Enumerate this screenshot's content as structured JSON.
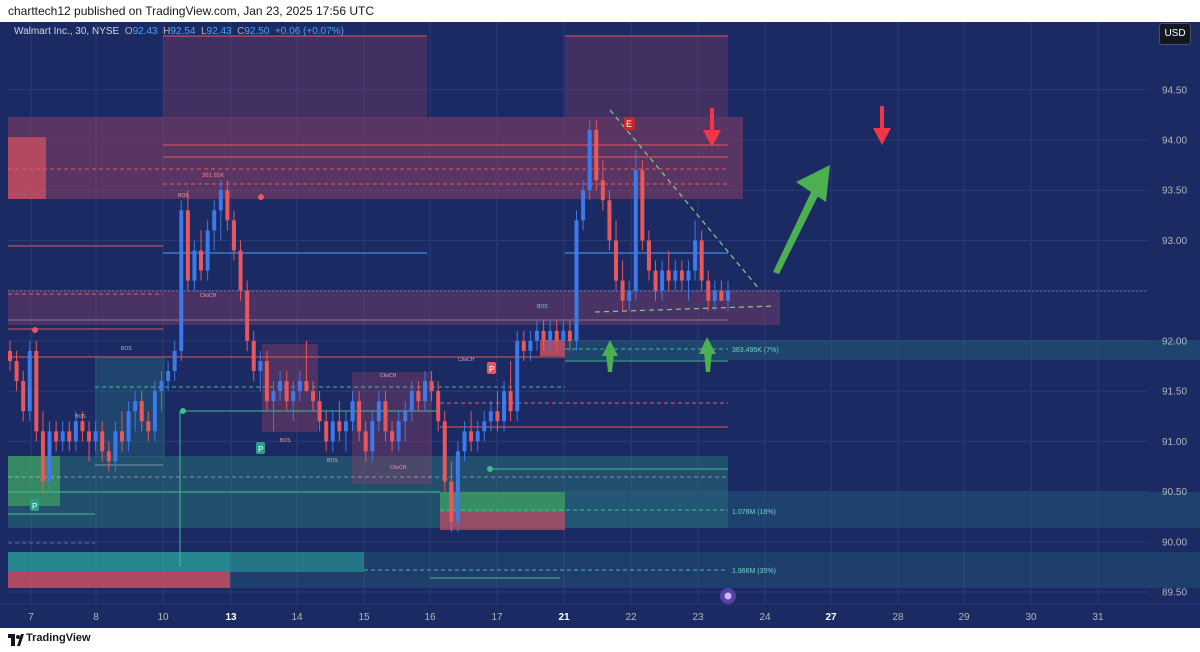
{
  "header": {
    "published_text": "charttech12 published on TradingView.com, Jan 23, 2025 17:56 UTC"
  },
  "legend": {
    "symbol": "Walmart Inc., 30, NYSE",
    "o_label": "O",
    "o_value": "92.43",
    "h_label": "H",
    "h_value": "92.54",
    "l_label": "L",
    "l_value": "92.43",
    "c_label": "C",
    "c_value": "92.50",
    "change": "+0.06 (+0.07%)"
  },
  "currency_button": "USD",
  "footer": {
    "brand": "TradingView"
  },
  "colors": {
    "background": "#1b2a63",
    "bull": "#3d79e8",
    "bear": "#e8575b",
    "up_arrow": "#4caf50",
    "down_arrow": "#f23645"
  },
  "annotations": {
    "bos": "BOS",
    "choch": "ChoCH",
    "vol_top": "361.65K",
    "vol_mid": "363.495K (7%)",
    "vol_low1": "1.078M (18%)",
    "vol_low2": "1.966M (35%)",
    "p_marker": "P",
    "e_marker": "E"
  },
  "chart_data": {
    "type": "candlestick",
    "y_ticks": [
      "94.50",
      "94.00",
      "93.50",
      "93.00",
      "92.50",
      "92.00",
      "91.50",
      "91.00",
      "90.50",
      "90.00",
      "89.50"
    ],
    "ylim": [
      89.4,
      95.2
    ],
    "x_ticks": [
      "7",
      "8",
      "10",
      "13",
      "14",
      "15",
      "16",
      "17",
      "21",
      "22",
      "23",
      "24",
      "27",
      "28",
      "29",
      "30",
      "31"
    ],
    "current_price": 92.5,
    "series": [
      {
        "values": [
          [
            91.9,
            92.0,
            91.7,
            91.8
          ],
          [
            91.8,
            91.9,
            91.5,
            91.6
          ],
          [
            91.6,
            91.7,
            91.2,
            91.3
          ],
          [
            91.3,
            92.0,
            91.2,
            91.9
          ],
          [
            91.9,
            92.0,
            91.0,
            91.1
          ],
          [
            91.1,
            91.3,
            90.5,
            90.6
          ],
          [
            90.6,
            91.2,
            90.5,
            91.1
          ],
          [
            91.1,
            91.2,
            90.9,
            91.0
          ],
          [
            91.0,
            91.2,
            90.9,
            91.1
          ],
          [
            91.1,
            91.2,
            90.9,
            91.0
          ],
          [
            91.0,
            91.3,
            90.9,
            91.2
          ],
          [
            91.2,
            91.3,
            91.0,
            91.1
          ],
          [
            91.1,
            91.2,
            90.8,
            91.0
          ],
          [
            91.0,
            91.2,
            90.9,
            91.1
          ],
          [
            91.1,
            91.2,
            90.8,
            90.9
          ],
          [
            90.9,
            91.0,
            90.7,
            90.8
          ],
          [
            90.8,
            91.2,
            90.7,
            91.1
          ],
          [
            91.1,
            91.3,
            90.9,
            91.0
          ],
          [
            91.0,
            91.4,
            90.9,
            91.3
          ],
          [
            91.3,
            91.5,
            91.1,
            91.4
          ],
          [
            91.4,
            91.5,
            91.1,
            91.2
          ],
          [
            91.2,
            91.3,
            91.0,
            91.1
          ],
          [
            91.1,
            91.6,
            91.0,
            91.5
          ],
          [
            91.5,
            91.7,
            91.3,
            91.6
          ],
          [
            91.6,
            91.8,
            91.5,
            91.7
          ],
          [
            91.7,
            92.0,
            91.6,
            91.9
          ],
          [
            91.9,
            93.4,
            91.8,
            93.3
          ],
          [
            93.3,
            93.5,
            92.5,
            92.6
          ],
          [
            92.6,
            93.0,
            92.5,
            92.9
          ],
          [
            92.9,
            93.1,
            92.6,
            92.7
          ],
          [
            92.7,
            93.2,
            92.6,
            93.1
          ],
          [
            93.1,
            93.4,
            92.9,
            93.3
          ],
          [
            93.3,
            93.6,
            93.0,
            93.5
          ],
          [
            93.5,
            93.6,
            93.1,
            93.2
          ],
          [
            93.2,
            93.3,
            92.8,
            92.9
          ],
          [
            92.9,
            93.0,
            92.4,
            92.5
          ],
          [
            92.5,
            92.6,
            91.9,
            92.0
          ],
          [
            92.0,
            92.1,
            91.6,
            91.7
          ],
          [
            91.7,
            91.9,
            91.5,
            91.8
          ],
          [
            91.8,
            91.9,
            91.3,
            91.4
          ],
          [
            91.4,
            91.6,
            91.1,
            91.5
          ],
          [
            91.5,
            91.7,
            91.4,
            91.6
          ],
          [
            91.6,
            91.7,
            91.3,
            91.4
          ],
          [
            91.4,
            91.6,
            91.2,
            91.5
          ],
          [
            91.5,
            91.7,
            91.4,
            91.6
          ],
          [
            91.6,
            92.0,
            91.5,
            91.5
          ],
          [
            91.5,
            91.6,
            91.3,
            91.4
          ],
          [
            91.4,
            91.5,
            91.1,
            91.2
          ],
          [
            91.2,
            91.3,
            90.9,
            91.0
          ],
          [
            91.0,
            91.3,
            90.9,
            91.2
          ],
          [
            91.2,
            91.4,
            91.0,
            91.1
          ],
          [
            91.1,
            91.3,
            90.9,
            91.2
          ],
          [
            91.2,
            91.5,
            91.1,
            91.4
          ],
          [
            91.4,
            91.5,
            91.0,
            91.1
          ],
          [
            91.1,
            91.2,
            90.8,
            90.9
          ],
          [
            90.9,
            91.3,
            90.8,
            91.2
          ],
          [
            91.2,
            91.5,
            91.1,
            91.4
          ],
          [
            91.4,
            91.5,
            91.0,
            91.1
          ],
          [
            91.1,
            91.2,
            90.9,
            91.0
          ],
          [
            91.0,
            91.3,
            90.9,
            91.2
          ],
          [
            91.2,
            91.4,
            91.0,
            91.3
          ],
          [
            91.3,
            91.6,
            91.2,
            91.5
          ],
          [
            91.5,
            91.6,
            91.3,
            91.4
          ],
          [
            91.4,
            91.7,
            91.3,
            91.6
          ],
          [
            91.6,
            91.7,
            91.4,
            91.5
          ],
          [
            91.5,
            91.6,
            91.1,
            91.2
          ],
          [
            91.2,
            91.3,
            90.5,
            90.6
          ],
          [
            90.6,
            90.8,
            90.1,
            90.2
          ],
          [
            90.2,
            91.0,
            90.1,
            90.9
          ],
          [
            90.9,
            91.2,
            90.8,
            91.1
          ],
          [
            91.1,
            91.3,
            90.9,
            91.0
          ],
          [
            91.0,
            91.2,
            90.9,
            91.1
          ],
          [
            91.1,
            91.3,
            91.0,
            91.2
          ],
          [
            91.2,
            91.4,
            91.1,
            91.3
          ],
          [
            91.3,
            91.5,
            91.1,
            91.2
          ],
          [
            91.2,
            91.6,
            91.1,
            91.5
          ],
          [
            91.5,
            91.8,
            91.2,
            91.3
          ],
          [
            91.3,
            92.1,
            91.2,
            92.0
          ],
          [
            92.0,
            92.1,
            91.8,
            91.9
          ],
          [
            91.9,
            92.1,
            91.8,
            92.0
          ],
          [
            92.0,
            92.2,
            91.9,
            92.1
          ],
          [
            92.1,
            92.2,
            91.9,
            92.0
          ],
          [
            92.0,
            92.2,
            91.9,
            92.1
          ],
          [
            92.1,
            92.2,
            91.9,
            92.0
          ],
          [
            92.0,
            92.2,
            91.9,
            92.1
          ],
          [
            92.1,
            92.2,
            91.9,
            92.0
          ],
          [
            92.0,
            93.3,
            91.9,
            93.2
          ],
          [
            93.2,
            93.6,
            93.1,
            93.5
          ],
          [
            93.5,
            94.2,
            93.4,
            94.1
          ],
          [
            94.1,
            94.2,
            93.5,
            93.6
          ],
          [
            93.6,
            93.8,
            93.3,
            93.4
          ],
          [
            93.4,
            93.5,
            92.9,
            93.0
          ],
          [
            93.0,
            93.2,
            92.5,
            92.6
          ],
          [
            92.6,
            92.8,
            92.3,
            92.4
          ],
          [
            92.4,
            92.6,
            92.3,
            92.5
          ],
          [
            92.5,
            93.9,
            92.4,
            93.7
          ],
          [
            93.7,
            93.8,
            92.9,
            93.0
          ],
          [
            93.0,
            93.1,
            92.6,
            92.7
          ],
          [
            92.7,
            92.8,
            92.4,
            92.5
          ],
          [
            92.5,
            92.8,
            92.4,
            92.7
          ],
          [
            92.7,
            92.9,
            92.5,
            92.6
          ],
          [
            92.6,
            92.8,
            92.5,
            92.7
          ],
          [
            92.7,
            92.8,
            92.5,
            92.6
          ],
          [
            92.6,
            92.8,
            92.4,
            92.7
          ],
          [
            92.7,
            93.2,
            92.6,
            93.0
          ],
          [
            93.0,
            93.1,
            92.5,
            92.6
          ],
          [
            92.6,
            92.7,
            92.3,
            92.4
          ],
          [
            92.4,
            92.6,
            92.3,
            92.5
          ],
          [
            92.5,
            92.6,
            92.4,
            92.4
          ],
          [
            92.4,
            92.6,
            92.3,
            92.5
          ]
        ]
      }
    ]
  }
}
